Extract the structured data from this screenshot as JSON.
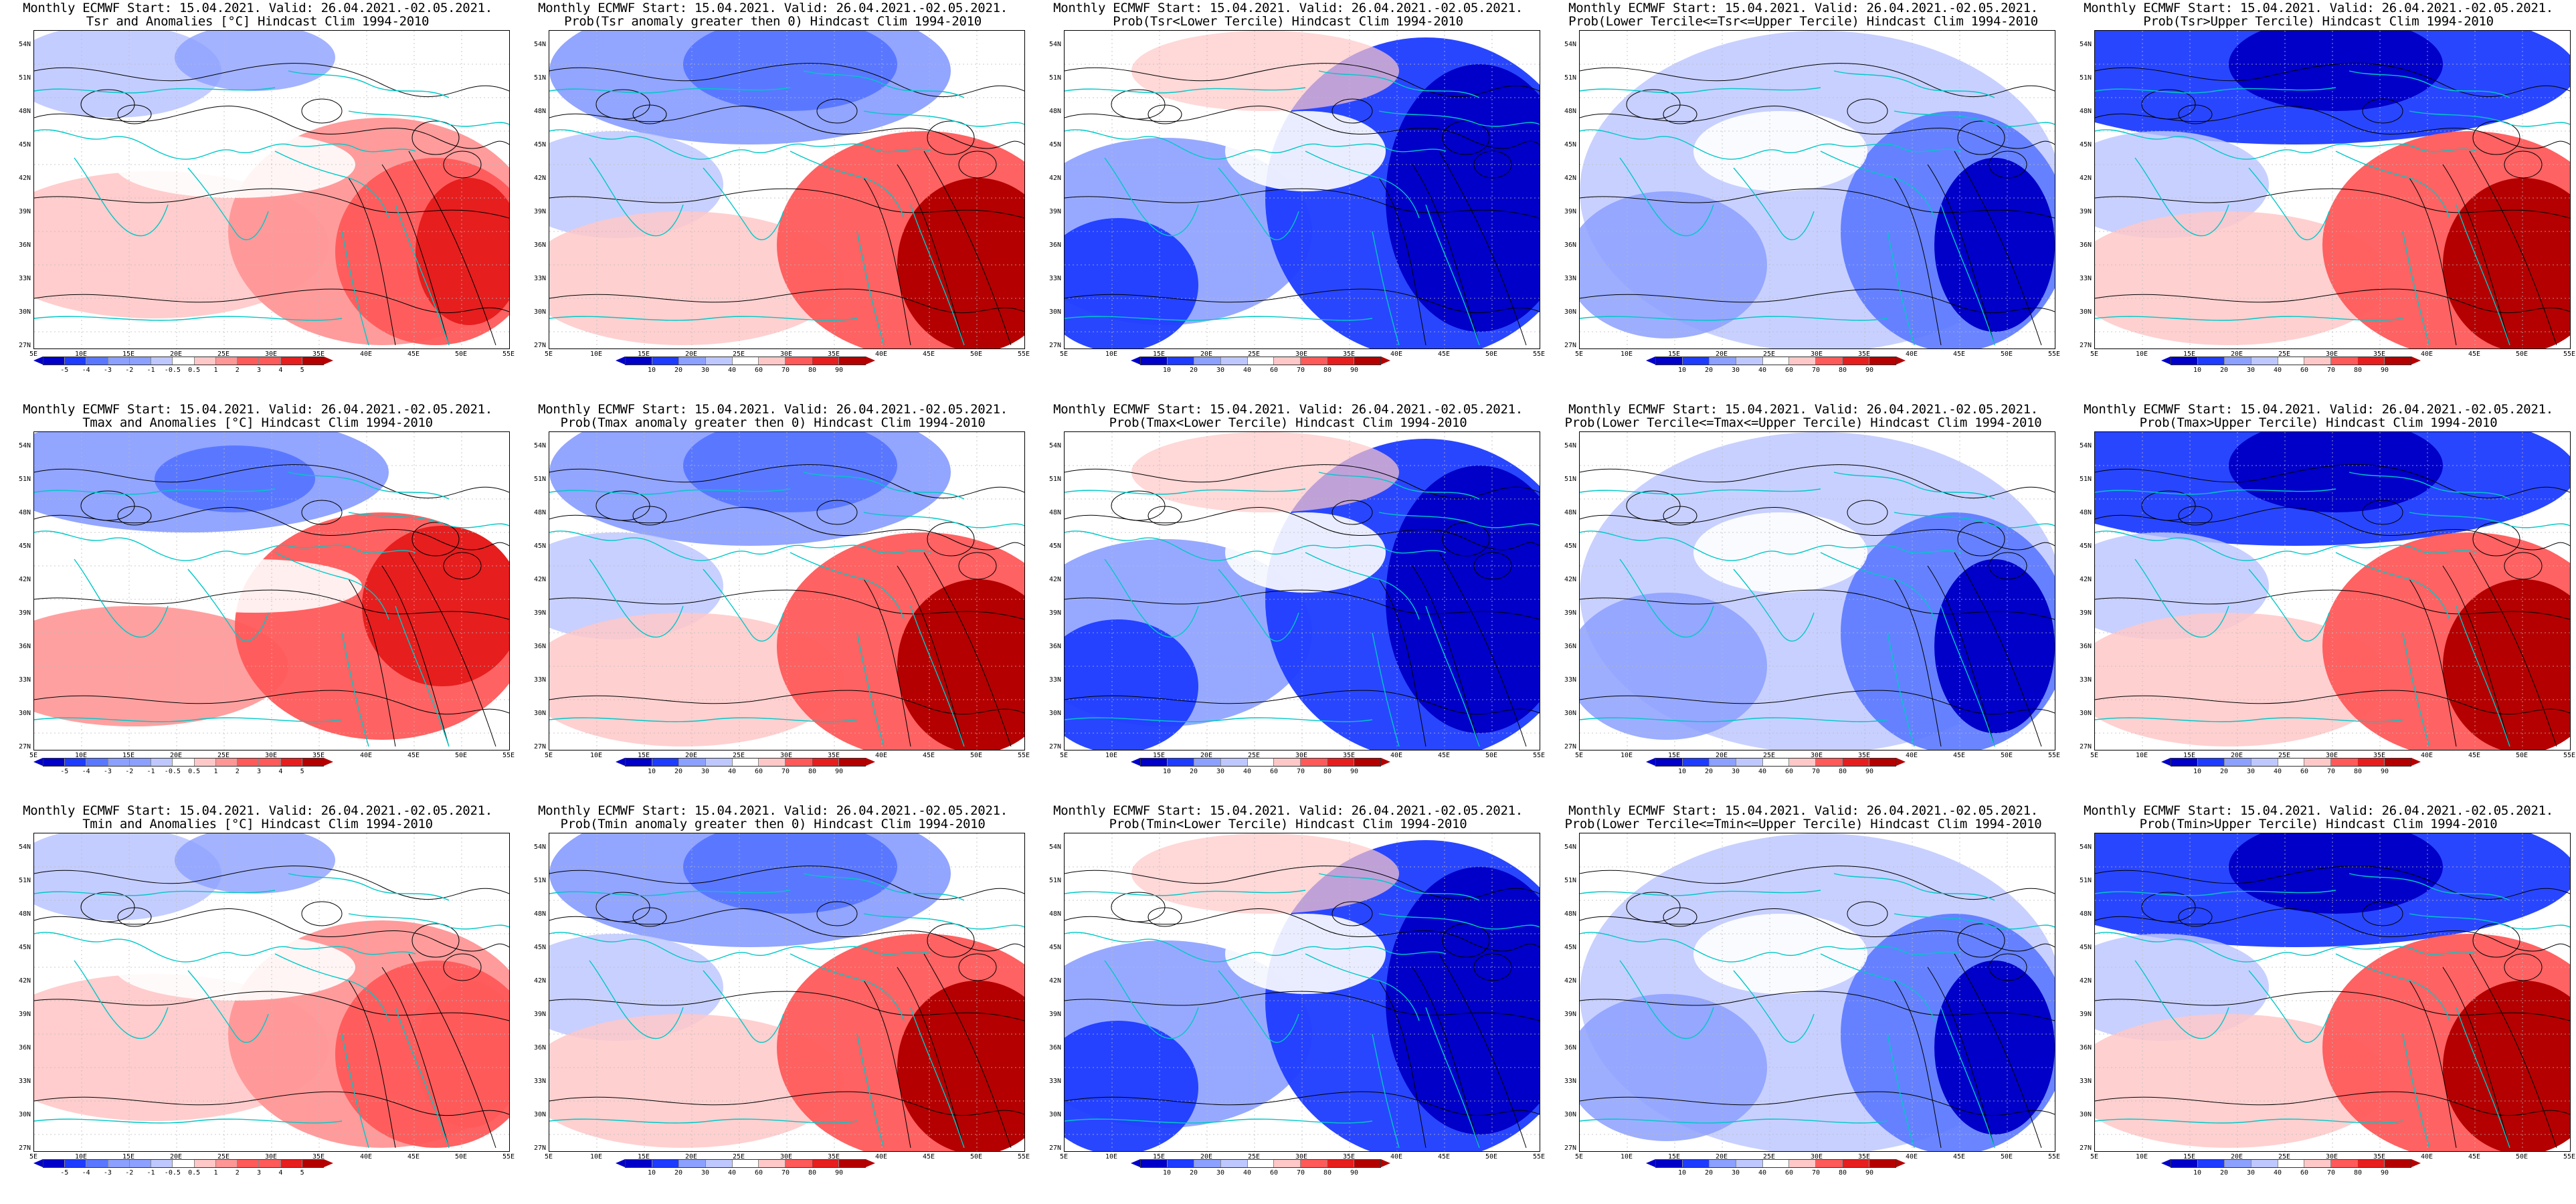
{
  "common_title": "Monthly ECMWF Start: 15.04.2021. Valid: 26.04.2021.-02.05.2021.",
  "colors": {
    "coast": "#00c8c8",
    "contour": "#000000",
    "neutral": "#ffffff",
    "blue_scale": [
      "#0000c8",
      "#1e3cff",
      "#5a78ff",
      "#8ca0ff",
      "#bec8ff"
    ],
    "red_scale": [
      "#ffc8c8",
      "#ff9696",
      "#ff5a5a",
      "#e61e1e",
      "#b40000"
    ]
  },
  "lat_labels": [
    "54N",
    "51N",
    "48N",
    "45N",
    "42N",
    "39N",
    "36N",
    "33N",
    "30N",
    "27N"
  ],
  "lon_labels": [
    "5E",
    "10E",
    "15E",
    "20E",
    "25E",
    "30E",
    "35E",
    "40E",
    "45E",
    "50E",
    "55E"
  ],
  "anom_ticks": [
    "-5",
    "-4",
    "-3",
    "-2",
    "-1",
    "-0.5",
    "0.5",
    "1",
    "2",
    "3",
    "4",
    "5"
  ],
  "prob_ticks": [
    "10",
    "20",
    "30",
    "40",
    "60",
    "70",
    "80",
    "90"
  ],
  "rows": [
    {
      "variable": "Tsr",
      "panels": [
        {
          "subtitle": "Tsr and Anomalies [°C] Hindcast Clim 1994-2010",
          "scale": "anom",
          "pattern": "warm_se"
        },
        {
          "subtitle": "Prob(Tsr anomaly greater then 0) Hindcast Clim 1994-2010",
          "scale": "prob",
          "pattern": "north_blue_se_red"
        },
        {
          "subtitle": "Prob(Tsr<Lower Tercile) Hindcast Clim 1994-2010",
          "scale": "prob",
          "pattern": "blue_east"
        },
        {
          "subtitle": "Prob(Lower Tercile<=Tsr<=Upper Tercile) Hindcast Clim 1994-2010",
          "scale": "prob",
          "pattern": "blue_mixed"
        },
        {
          "subtitle": "Prob(Tsr>Upper Tercile) Hindcast Clim 1994-2010",
          "scale": "prob",
          "pattern": "north_blue_se_red_strong"
        }
      ]
    },
    {
      "variable": "Tmax",
      "panels": [
        {
          "subtitle": "Tmax and Anomalies [°C] Hindcast Clim 1994-2010",
          "scale": "anom",
          "pattern": "cool_north_warm_se"
        },
        {
          "subtitle": "Prob(Tmax anomaly greater then 0) Hindcast Clim 1994-2010",
          "scale": "prob",
          "pattern": "north_blue_se_red"
        },
        {
          "subtitle": "Prob(Tmax<Lower Tercile) Hindcast Clim 1994-2010",
          "scale": "prob",
          "pattern": "blue_east"
        },
        {
          "subtitle": "Prob(Lower Tercile<=Tmax<=Upper Tercile) Hindcast Clim 1994-2010",
          "scale": "prob",
          "pattern": "blue_mixed"
        },
        {
          "subtitle": "Prob(Tmax>Upper Tercile) Hindcast Clim 1994-2010",
          "scale": "prob",
          "pattern": "north_blue_se_red_strong"
        }
      ]
    },
    {
      "variable": "Tmin",
      "panels": [
        {
          "subtitle": "Tmin and Anomalies [°C] Hindcast Clim 1994-2010",
          "scale": "anom",
          "pattern": "warm_se_light"
        },
        {
          "subtitle": "Prob(Tmin anomaly greater then 0) Hindcast Clim 1994-2010",
          "scale": "prob",
          "pattern": "north_blue_se_red"
        },
        {
          "subtitle": "Prob(Tmin<Lower Tercile) Hindcast Clim 1994-2010",
          "scale": "prob",
          "pattern": "blue_east"
        },
        {
          "subtitle": "Prob(Lower Tercile<=Tmin<=Upper Tercile) Hindcast Clim 1994-2010",
          "scale": "prob",
          "pattern": "blue_mixed"
        },
        {
          "subtitle": "Prob(Tmin>Upper Tercile) Hindcast Clim 1994-2010",
          "scale": "prob",
          "pattern": "north_blue_se_red_strong"
        }
      ]
    }
  ]
}
